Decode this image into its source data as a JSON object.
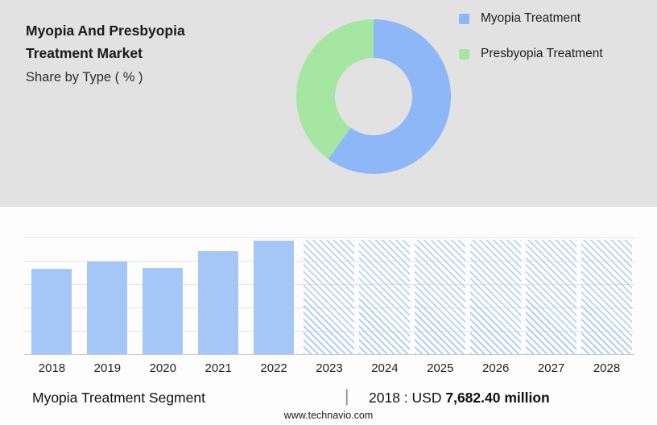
{
  "header": {
    "title_line1": "Myopia And Presbyopia",
    "title_line2": "Treatment Market",
    "subtitle": "Share by Type ( % )"
  },
  "legend": {
    "items": [
      {
        "label": "Myopia Treatment",
        "color": "#8db7f7"
      },
      {
        "label": "Presbyopia Treatment",
        "color": "#a5e6a3"
      }
    ]
  },
  "footer": {
    "segment_label": "Myopia Treatment Segment",
    "separator": "|",
    "value_prefix": "2018 : USD",
    "value_bold": "7,682.40 million"
  },
  "brand": {
    "website": "www.technavio.com"
  },
  "colors": {
    "myopia_blue": "#8db7f7",
    "presbyopia_green": "#a5e6a3",
    "bar_blue": "#a5c7f7",
    "panel_gray": "#e2e2e2"
  },
  "chart_data": [
    {
      "type": "pie",
      "title": "Share by Type ( % )",
      "donut": true,
      "labels": [
        "Myopia Treatment",
        "Presbyopia Treatment"
      ],
      "values": [
        60,
        40
      ],
      "colors": [
        "#8db7f7",
        "#a5e6a3"
      ],
      "legend_position": "right"
    },
    {
      "type": "bar",
      "title": "Myopia Treatment Segment (USD million)",
      "categories": [
        "2018",
        "2019",
        "2020",
        "2021",
        "2022",
        "2023",
        "2024",
        "2025",
        "2026",
        "2027",
        "2028"
      ],
      "series": [
        {
          "name": "Myopia Treatment Segment",
          "values": [
            7682.4,
            8350,
            7730,
            9300,
            10200,
            10260,
            10260,
            10260,
            10260,
            10260,
            10260
          ]
        }
      ],
      "solid_years": [
        "2018",
        "2019",
        "2020",
        "2021",
        "2022"
      ],
      "forecast_years": [
        "2023",
        "2024",
        "2025",
        "2026",
        "2027",
        "2028"
      ],
      "annotation": "2018 : USD 7,682.40 million",
      "xlabel": "",
      "ylabel": "",
      "ylim": [
        0,
        10500
      ],
      "grid": true
    }
  ]
}
